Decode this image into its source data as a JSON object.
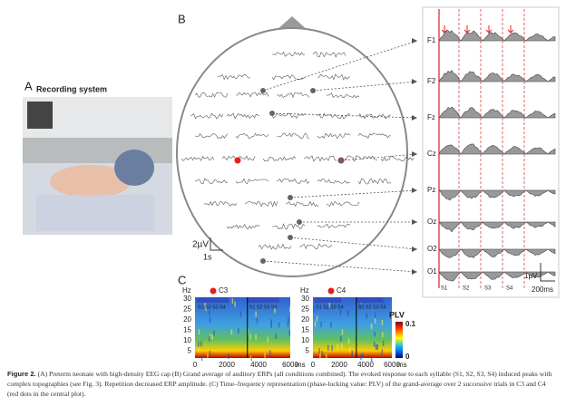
{
  "panel_a": {
    "label": "A",
    "title": "Recording system"
  },
  "panel_b": {
    "label": "B",
    "channels": [
      "F1",
      "F2",
      "Fz",
      "Cz",
      "Pz",
      "Oz",
      "O2",
      "O1"
    ],
    "head_scale": [
      "2µV",
      "1s"
    ],
    "erp_scale": [
      "1µV",
      "200ms"
    ],
    "syllables": [
      "S1",
      "S2",
      "S3",
      "S4"
    ]
  },
  "panel_c": {
    "label": "C",
    "electrodes": [
      "C3",
      "C4"
    ],
    "y_unit": "Hz",
    "y_ticks": [
      "30",
      "25",
      "20",
      "15",
      "10",
      "5"
    ],
    "x_ticks": [
      "0",
      "2000",
      "4000",
      "6000"
    ],
    "x_unit": "ms",
    "syllables": [
      "S1",
      "S2",
      "S3",
      "S4"
    ],
    "colorbar": {
      "title": "PLV",
      "max": "0.1",
      "min": "0"
    }
  },
  "caption": {
    "label": "Figure 2.",
    "text": "(A) Preterm neonate with high-density EEG cap (B) Grand average of auditory ERPs (all conditions combined). The evoked response to each syllable (S1, S2, S3, S4) induced peaks with complex topographies (see Fig. 3). Repetition decreased ERP amplitude. (C) Time–frequency representation (phase-locking value: PLV) of the grand-average over 2 successive trials in C3 and C4 (red dots in the central plot)."
  }
}
